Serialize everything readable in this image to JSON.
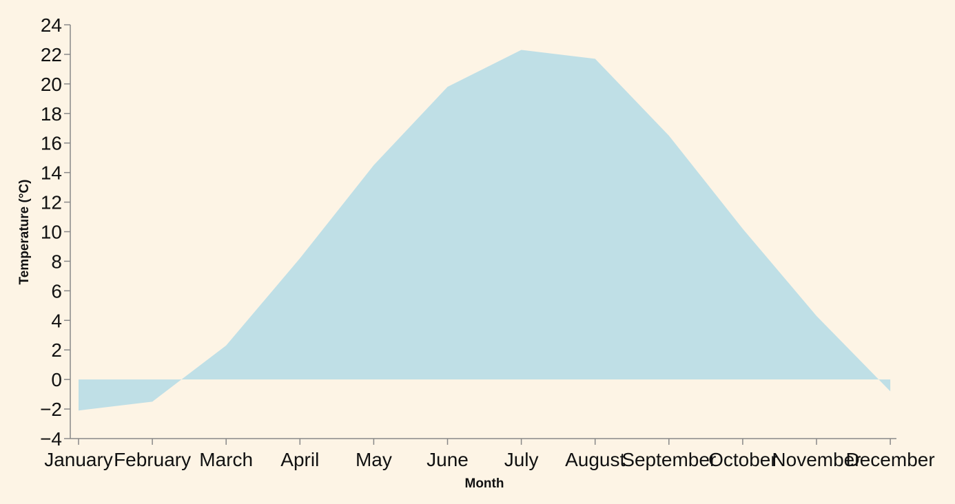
{
  "chart_data": {
    "type": "area",
    "categories": [
      "January",
      "February",
      "March",
      "April",
      "May",
      "June",
      "July",
      "August",
      "September",
      "October",
      "November",
      "December"
    ],
    "values": [
      -2.1,
      -1.5,
      2.3,
      8.2,
      14.5,
      19.8,
      22.3,
      21.7,
      16.5,
      10.2,
      4.3,
      -0.8
    ],
    "xlabel": "Month",
    "ylabel": "Temperature (°C)",
    "ylim": [
      -4,
      24
    ],
    "yticks": [
      "−4",
      "−2",
      "0",
      "2",
      "4",
      "6",
      "8",
      "10",
      "12",
      "14",
      "16",
      "18",
      "20",
      "22",
      "24"
    ],
    "grid": false,
    "legend": "none",
    "colors": {
      "area": "#bfdfe6",
      "axis": "#888888",
      "background": "#fdf4e5"
    }
  }
}
